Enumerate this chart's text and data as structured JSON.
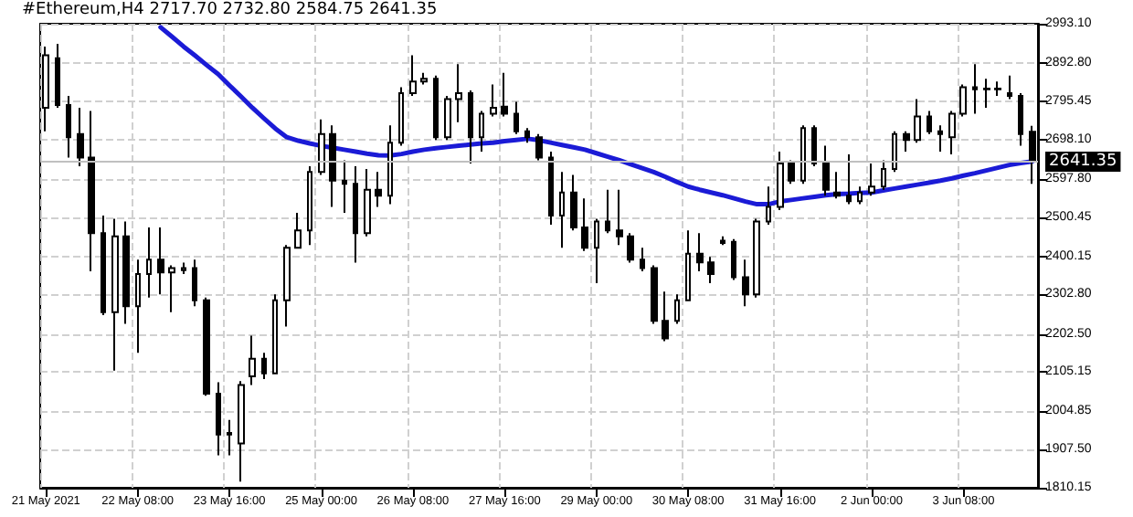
{
  "chart_data": {
    "type": "candlestick",
    "annotations": [
      "#Ethereum,H4 2717.70 2732.80 2584.75 2641.35"
    ],
    "categories": [
      "21 May 2021",
      null,
      null,
      null,
      null,
      null,
      null,
      null,
      "22 May 08:00",
      null,
      null,
      null,
      null,
      null,
      null,
      null,
      "23 May 16:00",
      null,
      null,
      null,
      null,
      null,
      null,
      null,
      "25 May 00:00",
      null,
      null,
      null,
      null,
      null,
      null,
      null,
      "26 May 08:00",
      null,
      null,
      null,
      null,
      null,
      null,
      null,
      "27 May 16:00",
      null,
      null,
      null,
      null,
      null,
      null,
      null,
      "29 May 00:00",
      null,
      null,
      null,
      null,
      null,
      null,
      null,
      "30 May 08:00",
      null,
      null,
      null,
      null,
      null,
      null,
      null,
      "31 May 16:00",
      null,
      null,
      null,
      null,
      null,
      null,
      null,
      "2 Jun 00:00",
      null,
      null,
      null,
      null,
      null,
      null,
      null,
      "3 Jun 08:00",
      null,
      null,
      null,
      null,
      null,
      null
    ],
    "color": "#000000",
    "ohlc": [
      [
        2779,
        2935,
        2719,
        2913
      ],
      [
        2905,
        2942,
        2779,
        2786
      ],
      [
        2786,
        2809,
        2652,
        2704
      ],
      [
        2712,
        2779,
        2630,
        2652
      ],
      [
        2652,
        2771,
        2362,
        2459
      ],
      [
        2459,
        2504,
        2250,
        2258
      ],
      [
        2258,
        2496,
        2109,
        2451
      ],
      [
        2451,
        2489,
        2228,
        2273
      ],
      [
        2273,
        2392,
        2154,
        2355
      ],
      [
        2355,
        2474,
        2295,
        2392
      ],
      [
        2392,
        2474,
        2303,
        2359
      ],
      [
        2359,
        2377,
        2258,
        2370
      ],
      [
        2365,
        2384,
        2355,
        2370
      ],
      [
        2370,
        2392,
        2273,
        2288
      ],
      [
        2288,
        2295,
        2045,
        2050
      ],
      [
        2050,
        2079,
        1893,
        1946
      ],
      [
        1946,
        1983,
        1893,
        1950
      ],
      [
        1923,
        2082,
        1826,
        2072
      ],
      [
        2094,
        2198,
        2072,
        2139
      ],
      [
        2139,
        2154,
        2087,
        2102
      ],
      [
        2102,
        2303,
        2102,
        2288
      ],
      [
        2288,
        2429,
        2221,
        2422
      ],
      [
        2422,
        2511,
        2422,
        2466
      ],
      [
        2466,
        2630,
        2429,
        2615
      ],
      [
        2615,
        2749,
        2608,
        2712
      ],
      [
        2712,
        2734,
        2526,
        2593
      ],
      [
        2593,
        2645,
        2511,
        2585
      ],
      [
        2585,
        2630,
        2384,
        2459
      ],
      [
        2459,
        2623,
        2451,
        2570
      ],
      [
        2570,
        2615,
        2526,
        2555
      ],
      [
        2555,
        2734,
        2533,
        2690
      ],
      [
        2690,
        2831,
        2682,
        2816
      ],
      [
        2816,
        2913,
        2809,
        2846
      ],
      [
        2846,
        2868,
        2838,
        2853
      ],
      [
        2853,
        2861,
        2697,
        2704
      ],
      [
        2704,
        2809,
        2697,
        2801
      ],
      [
        2801,
        2890,
        2742,
        2816
      ],
      [
        2816,
        2823,
        2637,
        2704
      ],
      [
        2704,
        2771,
        2667,
        2764
      ],
      [
        2764,
        2838,
        2757,
        2779
      ],
      [
        2782,
        2868,
        2757,
        2764
      ],
      [
        2764,
        2794,
        2712,
        2719
      ],
      [
        2719,
        2727,
        2690,
        2704
      ],
      [
        2704,
        2712,
        2645,
        2652
      ],
      [
        2652,
        2667,
        2481,
        2504
      ],
      [
        2504,
        2615,
        2422,
        2563
      ],
      [
        2563,
        2608,
        2466,
        2474
      ],
      [
        2474,
        2548,
        2414,
        2422
      ],
      [
        2422,
        2496,
        2332,
        2489
      ],
      [
        2489,
        2570,
        2459,
        2466
      ],
      [
        2466,
        2570,
        2429,
        2451
      ],
      [
        2451,
        2459,
        2384,
        2392
      ],
      [
        2392,
        2422,
        2362,
        2370
      ],
      [
        2370,
        2377,
        2228,
        2236
      ],
      [
        2236,
        2310,
        2184,
        2191
      ],
      [
        2236,
        2303,
        2228,
        2288
      ],
      [
        2288,
        2466,
        2288,
        2407
      ],
      [
        2407,
        2459,
        2362,
        2385
      ],
      [
        2385,
        2399,
        2332,
        2355
      ],
      [
        2440,
        2451,
        2429,
        2434
      ],
      [
        2437,
        2444,
        2340,
        2347
      ],
      [
        2347,
        2392,
        2273,
        2303
      ],
      [
        2303,
        2496,
        2295,
        2489
      ],
      [
        2489,
        2578,
        2481,
        2526
      ],
      [
        2526,
        2667,
        2518,
        2637
      ],
      [
        2637,
        2645,
        2585,
        2593
      ],
      [
        2593,
        2734,
        2585,
        2727
      ],
      [
        2727,
        2734,
        2630,
        2637
      ],
      [
        2637,
        2682,
        2555,
        2570
      ],
      [
        2563,
        2615,
        2548,
        2555
      ],
      [
        2555,
        2660,
        2533,
        2541
      ],
      [
        2541,
        2578,
        2533,
        2563
      ],
      [
        2563,
        2637,
        2555,
        2578
      ],
      [
        2578,
        2645,
        2570,
        2623
      ],
      [
        2623,
        2719,
        2615,
        2712
      ],
      [
        2712,
        2719,
        2667,
        2697
      ],
      [
        2697,
        2801,
        2690,
        2757
      ],
      [
        2757,
        2771,
        2712,
        2719
      ],
      [
        2719,
        2734,
        2667,
        2712
      ],
      [
        2704,
        2771,
        2660,
        2764
      ],
      [
        2764,
        2838,
        2757,
        2831
      ],
      [
        2831,
        2890,
        2764,
        2826
      ],
      [
        2828,
        2853,
        2779,
        2826
      ],
      [
        2826,
        2846,
        2809,
        2828
      ],
      [
        2816,
        2861,
        2801,
        2809
      ],
      [
        2809,
        2816,
        2682,
        2712
      ],
      [
        2717.7,
        2732.8,
        2584.75,
        2641.35
      ]
    ],
    "series": [
      {
        "type": "line",
        "color": "#1b1bd6",
        "values": [
          null,
          null,
          null,
          null,
          null,
          null,
          null,
          null,
          null,
          null,
          2984,
          2960,
          2935,
          2912,
          2888,
          2865,
          2836,
          2808,
          2779,
          2752,
          2726,
          2704,
          2695,
          2688,
          2682,
          2677,
          2672,
          2667,
          2662,
          2658,
          2657,
          2661,
          2667,
          2672,
          2676,
          2679,
          2682,
          2685,
          2688,
          2690,
          2694,
          2697,
          2700,
          2696,
          2690,
          2684,
          2678,
          2672,
          2663,
          2654,
          2645,
          2635,
          2625,
          2615,
          2603,
          2590,
          2578,
          2570,
          2563,
          2556,
          2548,
          2540,
          2533,
          2533,
          2540,
          2544,
          2548,
          2552,
          2556,
          2559,
          2560,
          2562,
          2563,
          2568,
          2573,
          2578,
          2583,
          2588,
          2593,
          2599,
          2606,
          2612,
          2619,
          2626,
          2633,
          2638,
          2642
        ]
      }
    ],
    "ylim": [
      1810.15,
      2993.1
    ],
    "yticks": [
      1810.15,
      {
        "value": 1907.5,
        "label": "1907.50"
      },
      2004.85,
      2105.15,
      {
        "value": 2202.5,
        "label": "2202.50"
      },
      {
        "value": 2302.8,
        "label": "2302.80"
      },
      2400.15,
      2500.45,
      {
        "value": 2597.8,
        "label": "2597.80"
      },
      {
        "value": 2698.1,
        "label": "2698.10"
      },
      2795.45,
      {
        "value": 2892.8,
        "label": "2892.80"
      },
      {
        "value": 2993.1,
        "label": "2993.10"
      }
    ],
    "ref_lines": [
      {
        "axis": "y",
        "value": 2641.35,
        "label": "2641.35",
        "color": "#c0c0c0"
      }
    ],
    "grid": true,
    "marker": "none",
    "line_style": "solid"
  }
}
